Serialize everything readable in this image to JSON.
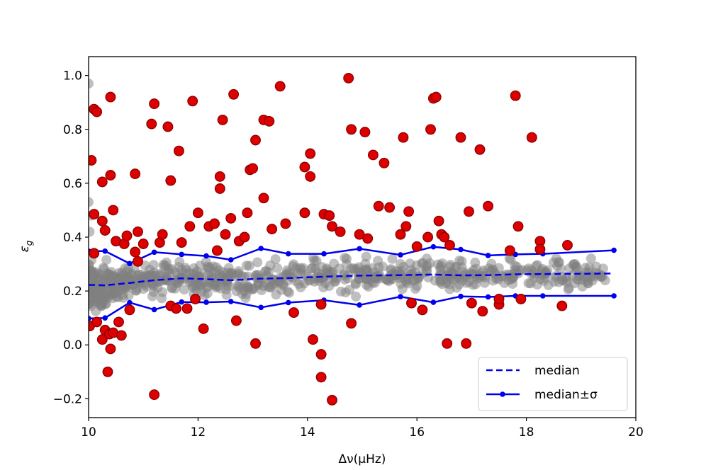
{
  "chart_data": {
    "type": "scatter",
    "xlabel": "Δν(μHz)",
    "ylabel": "ε",
    "ylabel_sub": "g",
    "xlim": [
      10,
      20
    ],
    "ylim": [
      -0.27,
      1.07
    ],
    "xticks": [
      10,
      12,
      14,
      16,
      18,
      20
    ],
    "yticks": [
      -0.2,
      0.0,
      0.2,
      0.4,
      0.6,
      0.8,
      1.0
    ],
    "ytick_labels": [
      "−0.2",
      "0.0",
      "0.2",
      "0.4",
      "0.6",
      "0.8",
      "1.0"
    ],
    "legend": {
      "position": "bottom-right",
      "entries": [
        {
          "label": "median",
          "style": "dashed"
        },
        {
          "label": "median±σ",
          "style": "solid-marker"
        }
      ]
    },
    "colors": {
      "bulk": "#808080",
      "outlier_fill": "#dd0000",
      "outlier_edge": "#8b0000",
      "median": "#0000ee"
    },
    "series": [
      {
        "name": "median",
        "style": "dashed",
        "x": [
          10.0,
          10.3,
          10.75,
          11.2,
          11.7,
          12.15,
          12.6,
          13.15,
          13.65,
          14.3,
          14.95,
          15.7,
          16.3,
          16.8,
          17.3,
          17.8,
          18.3,
          19.6
        ],
        "y": [
          0.223,
          0.221,
          0.23,
          0.24,
          0.247,
          0.244,
          0.24,
          0.246,
          0.248,
          0.253,
          0.257,
          0.259,
          0.261,
          0.258,
          0.259,
          0.262,
          0.263,
          0.265
        ]
      },
      {
        "name": "median+σ",
        "style": "solid-marker",
        "x": [
          10.0,
          10.3,
          10.75,
          11.2,
          11.7,
          12.15,
          12.6,
          13.15,
          13.65,
          14.3,
          14.95,
          15.7,
          16.3,
          16.8,
          17.3,
          17.8,
          18.3,
          19.6
        ],
        "y": [
          0.348,
          0.348,
          0.302,
          0.344,
          0.336,
          0.33,
          0.316,
          0.358,
          0.338,
          0.338,
          0.357,
          0.334,
          0.364,
          0.354,
          0.332,
          0.336,
          0.338,
          0.351
        ]
      },
      {
        "name": "median-σ",
        "style": "solid-marker",
        "x": [
          10.0,
          10.3,
          10.75,
          11.2,
          11.7,
          12.15,
          12.6,
          13.15,
          13.65,
          14.3,
          14.95,
          15.7,
          16.3,
          16.8,
          17.3,
          17.8,
          18.3,
          19.6
        ],
        "y": [
          0.098,
          0.1,
          0.157,
          0.131,
          0.159,
          0.158,
          0.161,
          0.139,
          0.157,
          0.166,
          0.148,
          0.179,
          0.158,
          0.18,
          0.178,
          0.182,
          0.182,
          0.182
        ]
      },
      {
        "name": "outliers",
        "style": "points-red",
        "points": [
          [
            10.02,
            0.07
          ],
          [
            10.05,
            0.685
          ],
          [
            10.1,
            0.875
          ],
          [
            10.15,
            0.865
          ],
          [
            10.1,
            0.485
          ],
          [
            10.1,
            0.34
          ],
          [
            10.15,
            0.085
          ],
          [
            10.25,
            0.02
          ],
          [
            10.25,
            0.46
          ],
          [
            10.25,
            0.605
          ],
          [
            10.3,
            0.055
          ],
          [
            10.3,
            0.425
          ],
          [
            10.35,
            -0.1
          ],
          [
            10.38,
            0.04
          ],
          [
            10.4,
            -0.015
          ],
          [
            10.4,
            0.63
          ],
          [
            10.4,
            0.92
          ],
          [
            10.45,
            0.5
          ],
          [
            10.45,
            0.045
          ],
          [
            10.5,
            0.385
          ],
          [
            10.55,
            0.085
          ],
          [
            10.6,
            0.035
          ],
          [
            10.65,
            0.375
          ],
          [
            10.7,
            0.405
          ],
          [
            10.75,
            0.13
          ],
          [
            10.85,
            0.345
          ],
          [
            10.85,
            0.635
          ],
          [
            10.9,
            0.42
          ],
          [
            10.9,
            0.31
          ],
          [
            11.0,
            0.375
          ],
          [
            11.15,
            0.82
          ],
          [
            11.2,
            0.895
          ],
          [
            11.2,
            -0.185
          ],
          [
            11.3,
            0.38
          ],
          [
            11.35,
            0.41
          ],
          [
            11.45,
            0.81
          ],
          [
            11.5,
            0.61
          ],
          [
            11.5,
            0.145
          ],
          [
            11.6,
            0.135
          ],
          [
            11.65,
            0.72
          ],
          [
            11.7,
            0.38
          ],
          [
            11.8,
            0.135
          ],
          [
            11.85,
            0.44
          ],
          [
            11.9,
            0.905
          ],
          [
            11.95,
            0.17
          ],
          [
            12.0,
            0.49
          ],
          [
            12.1,
            0.06
          ],
          [
            12.2,
            0.44
          ],
          [
            12.3,
            0.45
          ],
          [
            12.35,
            0.35
          ],
          [
            12.4,
            0.625
          ],
          [
            12.4,
            0.58
          ],
          [
            12.45,
            0.835
          ],
          [
            12.5,
            0.41
          ],
          [
            12.6,
            0.47
          ],
          [
            12.65,
            0.93
          ],
          [
            12.7,
            0.09
          ],
          [
            12.75,
            0.385
          ],
          [
            12.85,
            0.4
          ],
          [
            12.9,
            0.49
          ],
          [
            12.95,
            0.65
          ],
          [
            13.0,
            0.655
          ],
          [
            13.05,
            0.005
          ],
          [
            13.05,
            0.76
          ],
          [
            13.2,
            0.835
          ],
          [
            13.2,
            0.545
          ],
          [
            13.3,
            0.83
          ],
          [
            13.35,
            0.43
          ],
          [
            13.5,
            0.96
          ],
          [
            13.6,
            0.45
          ],
          [
            13.75,
            0.12
          ],
          [
            13.95,
            0.49
          ],
          [
            13.95,
            0.66
          ],
          [
            14.05,
            0.71
          ],
          [
            14.05,
            0.625
          ],
          [
            14.1,
            0.02
          ],
          [
            14.25,
            0.15
          ],
          [
            14.25,
            -0.035
          ],
          [
            14.25,
            -0.12
          ],
          [
            14.3,
            0.485
          ],
          [
            14.4,
            0.48
          ],
          [
            14.45,
            -0.205
          ],
          [
            14.45,
            0.44
          ],
          [
            14.6,
            0.42
          ],
          [
            14.75,
            0.99
          ],
          [
            14.8,
            0.08
          ],
          [
            14.8,
            0.8
          ],
          [
            14.95,
            0.41
          ],
          [
            15.05,
            0.79
          ],
          [
            15.1,
            0.395
          ],
          [
            15.2,
            0.705
          ],
          [
            15.3,
            0.515
          ],
          [
            15.4,
            0.675
          ],
          [
            15.5,
            0.51
          ],
          [
            15.7,
            0.41
          ],
          [
            15.75,
            0.77
          ],
          [
            15.8,
            0.44
          ],
          [
            15.85,
            0.495
          ],
          [
            15.9,
            0.155
          ],
          [
            16.0,
            0.365
          ],
          [
            16.1,
            0.13
          ],
          [
            16.2,
            0.4
          ],
          [
            16.25,
            0.8
          ],
          [
            16.3,
            0.915
          ],
          [
            16.35,
            0.92
          ],
          [
            16.4,
            0.46
          ],
          [
            16.45,
            0.41
          ],
          [
            16.5,
            0.4
          ],
          [
            16.55,
            0.005
          ],
          [
            16.6,
            0.37
          ],
          [
            16.8,
            0.77
          ],
          [
            16.9,
            0.005
          ],
          [
            16.95,
            0.495
          ],
          [
            17.0,
            0.155
          ],
          [
            17.15,
            0.725
          ],
          [
            17.2,
            0.125
          ],
          [
            17.3,
            0.515
          ],
          [
            17.5,
            0.15
          ],
          [
            17.5,
            0.17
          ],
          [
            17.7,
            0.35
          ],
          [
            17.8,
            0.925
          ],
          [
            17.85,
            0.44
          ],
          [
            17.9,
            0.17
          ],
          [
            18.1,
            0.77
          ],
          [
            18.25,
            0.385
          ],
          [
            18.25,
            0.355
          ],
          [
            18.65,
            0.145
          ],
          [
            18.75,
            0.37
          ]
        ]
      }
    ]
  }
}
